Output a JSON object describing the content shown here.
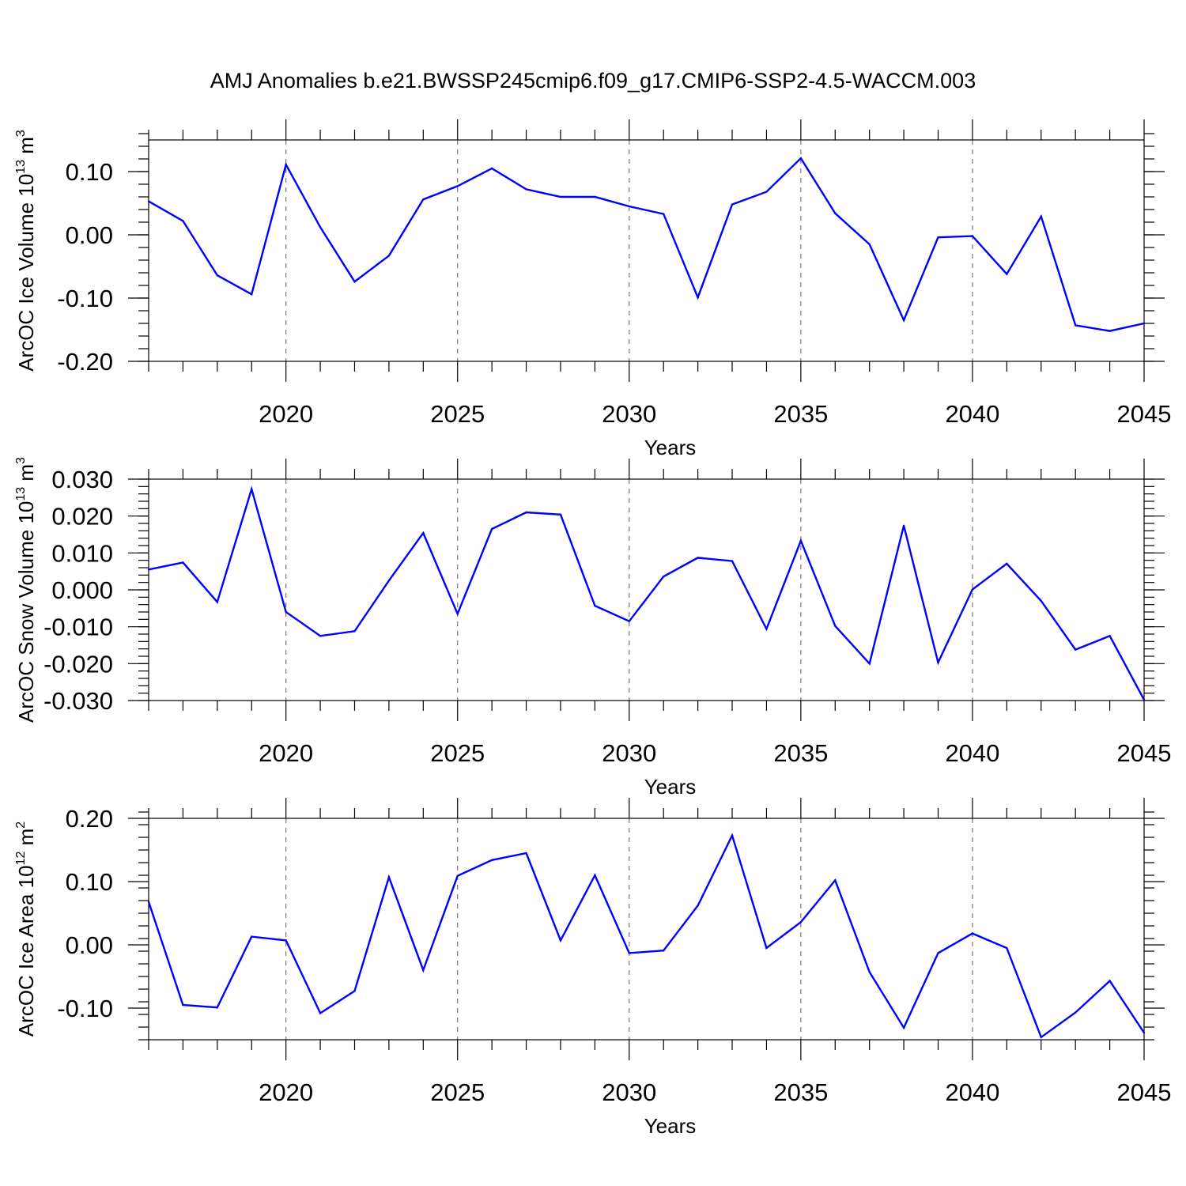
{
  "title": "AMJ Anomalies b.e21.BWSSP245cmip6.f09_g17.CMIP6-SSP2-4.5-WACCM.003",
  "chart_data": [
    {
      "type": "line",
      "name": "ice-volume",
      "title": "AMJ Anomalies b.e21.BWSSP245cmip6.f09_g17.CMIP6-SSP2-4.5-WACCM.003",
      "xlabel": "Years",
      "ylabel_main": "ArcOC Ice Volume 10",
      "ylabel_exp": "13",
      "ylabel_unit": " m",
      "ylabel_unit_exp": "3",
      "xlim": [
        2016,
        2045
      ],
      "ylim": [
        -0.2,
        0.15
      ],
      "yticks": [
        -0.2,
        -0.1,
        0.0,
        0.1
      ],
      "ytick_labels": [
        "-0.20",
        "-0.10",
        "0.00",
        "0.10"
      ],
      "yminor_step": 0.02,
      "xticks": [
        2020,
        2025,
        2030,
        2035,
        2040,
        2045
      ],
      "xtick_labels": [
        "2020",
        "2025",
        "2030",
        "2035",
        "2040",
        "2045"
      ],
      "grid_x": [
        2020,
        2025,
        2030,
        2035,
        2040
      ],
      "x": [
        2016,
        2017,
        2018,
        2019,
        2020,
        2021,
        2022,
        2023,
        2024,
        2025,
        2026,
        2027,
        2028,
        2029,
        2030,
        2031,
        2032,
        2033,
        2034,
        2035,
        2036,
        2037,
        2038,
        2039,
        2040,
        2041,
        2042,
        2043,
        2044,
        2045
      ],
      "values": [
        0.053,
        0.022,
        -0.064,
        -0.094,
        0.111,
        0.012,
        -0.074,
        -0.033,
        0.056,
        0.077,
        0.105,
        0.072,
        0.06,
        0.06,
        0.045,
        0.033,
        -0.099,
        0.048,
        0.068,
        0.121,
        0.034,
        -0.015,
        -0.135,
        -0.004,
        -0.002,
        -0.062,
        0.029,
        -0.143,
        -0.152,
        -0.14
      ],
      "series_color": "#0000ff"
    },
    {
      "type": "line",
      "name": "snow-volume",
      "xlabel": "Years",
      "ylabel_main": "ArcOC Snow Volume 10",
      "ylabel_exp": "13",
      "ylabel_unit": " m",
      "ylabel_unit_exp": "3",
      "xlim": [
        2016,
        2045
      ],
      "ylim": [
        -0.03,
        0.03
      ],
      "yticks": [
        -0.03,
        -0.02,
        -0.01,
        0.0,
        0.01,
        0.02,
        0.03
      ],
      "ytick_labels": [
        "-0.030",
        "-0.020",
        "-0.010",
        "0.000",
        "0.010",
        "0.020",
        "0.030"
      ],
      "yminor_step": 0.002,
      "xticks": [
        2020,
        2025,
        2030,
        2035,
        2040,
        2045
      ],
      "xtick_labels": [
        "2020",
        "2025",
        "2030",
        "2035",
        "2040",
        "2045"
      ],
      "grid_x": [
        2020,
        2025,
        2030,
        2035,
        2040
      ],
      "x": [
        2016,
        2017,
        2018,
        2019,
        2020,
        2021,
        2022,
        2023,
        2024,
        2025,
        2026,
        2027,
        2028,
        2029,
        2030,
        2031,
        2032,
        2033,
        2034,
        2035,
        2036,
        2037,
        2038,
        2039,
        2040,
        2041,
        2042,
        2043,
        2044,
        2045
      ],
      "values": [
        0.0055,
        0.0074,
        -0.0033,
        0.0273,
        -0.006,
        -0.0125,
        -0.0112,
        0.0025,
        0.0154,
        -0.0065,
        0.0165,
        0.021,
        0.0204,
        -0.0043,
        -0.0085,
        0.0036,
        0.0087,
        0.0078,
        -0.0106,
        0.0133,
        -0.0098,
        -0.02,
        0.0174,
        -0.0197,
        0.0001,
        0.0071,
        -0.003,
        -0.0162,
        -0.0125,
        -0.0298
      ],
      "series_color": "#0000ff"
    },
    {
      "type": "line",
      "name": "ice-area",
      "xlabel": "Years",
      "ylabel_main": "ArcOC Ice Area 10",
      "ylabel_exp": "12",
      "ylabel_unit": " m",
      "ylabel_unit_exp": "2",
      "xlim": [
        2016,
        2045
      ],
      "ylim": [
        -0.15,
        0.2
      ],
      "yticks": [
        -0.1,
        0.0,
        0.1,
        0.2
      ],
      "ytick_labels": [
        "-0.10",
        "0.00",
        "0.10",
        "0.20"
      ],
      "yminor_step": 0.02,
      "xticks": [
        2020,
        2025,
        2030,
        2035,
        2040,
        2045
      ],
      "xtick_labels": [
        "2020",
        "2025",
        "2030",
        "2035",
        "2040",
        "2045"
      ],
      "grid_x": [
        2020,
        2025,
        2030,
        2035,
        2040
      ],
      "x": [
        2016,
        2017,
        2018,
        2019,
        2020,
        2021,
        2022,
        2023,
        2024,
        2025,
        2026,
        2027,
        2028,
        2029,
        2030,
        2031,
        2032,
        2033,
        2034,
        2035,
        2036,
        2037,
        2038,
        2039,
        2040,
        2041,
        2042,
        2043,
        2044,
        2045
      ],
      "values": [
        0.068,
        -0.095,
        -0.099,
        0.013,
        0.007,
        -0.108,
        -0.073,
        0.107,
        -0.04,
        0.109,
        0.134,
        0.145,
        0.007,
        0.11,
        -0.013,
        -0.009,
        0.062,
        0.173,
        -0.005,
        0.036,
        0.102,
        -0.043,
        -0.131,
        -0.013,
        0.018,
        -0.005,
        -0.146,
        -0.107,
        -0.057,
        -0.139
      ],
      "series_color": "#0000ff"
    }
  ]
}
